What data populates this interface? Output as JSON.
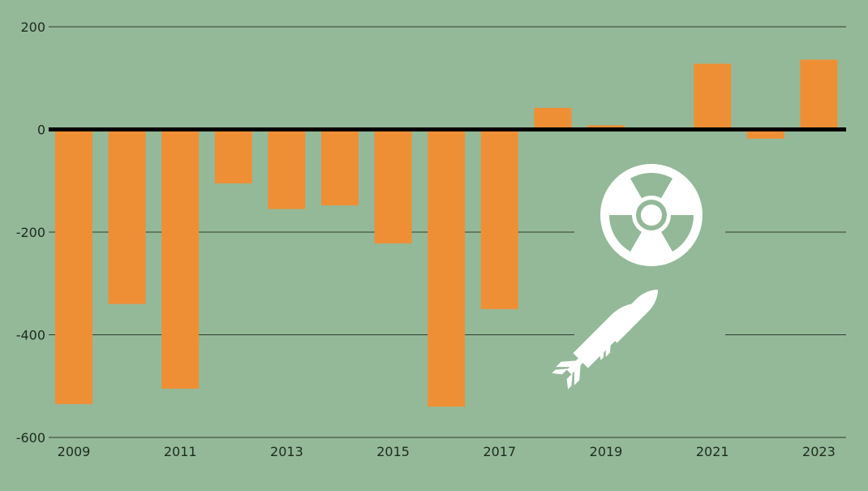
{
  "colors": {
    "background": "#94b998",
    "bar": "#ef8f35",
    "gridline": "#2e3b30",
    "zero_line": "#000000",
    "icon": "#ffffff"
  },
  "icons": [
    "radiation-icon",
    "missiles-icon"
  ],
  "chart_data": {
    "type": "bar",
    "title": "",
    "xlabel": "",
    "ylabel": "",
    "categories": [
      "2009",
      "2010",
      "2011",
      "2012",
      "2013",
      "2014",
      "2015",
      "2016",
      "2017",
      "2018",
      "2019",
      "2020",
      "2021",
      "2022",
      "2023"
    ],
    "values": [
      -535,
      -340,
      -505,
      -105,
      -155,
      -148,
      -222,
      -540,
      -350,
      42,
      8,
      3,
      128,
      -18,
      136
    ],
    "ylim": [
      -600,
      200
    ],
    "y_ticks": [
      200,
      0,
      -200,
      -400,
      -600
    ],
    "y_tick_labels": [
      "200",
      "0",
      "-200",
      "-400",
      "-600"
    ],
    "x_tick_labels": [
      "2009",
      "2011",
      "2013",
      "2015",
      "2017",
      "2019",
      "2021",
      "2023"
    ],
    "grid": true,
    "legend": "none"
  }
}
